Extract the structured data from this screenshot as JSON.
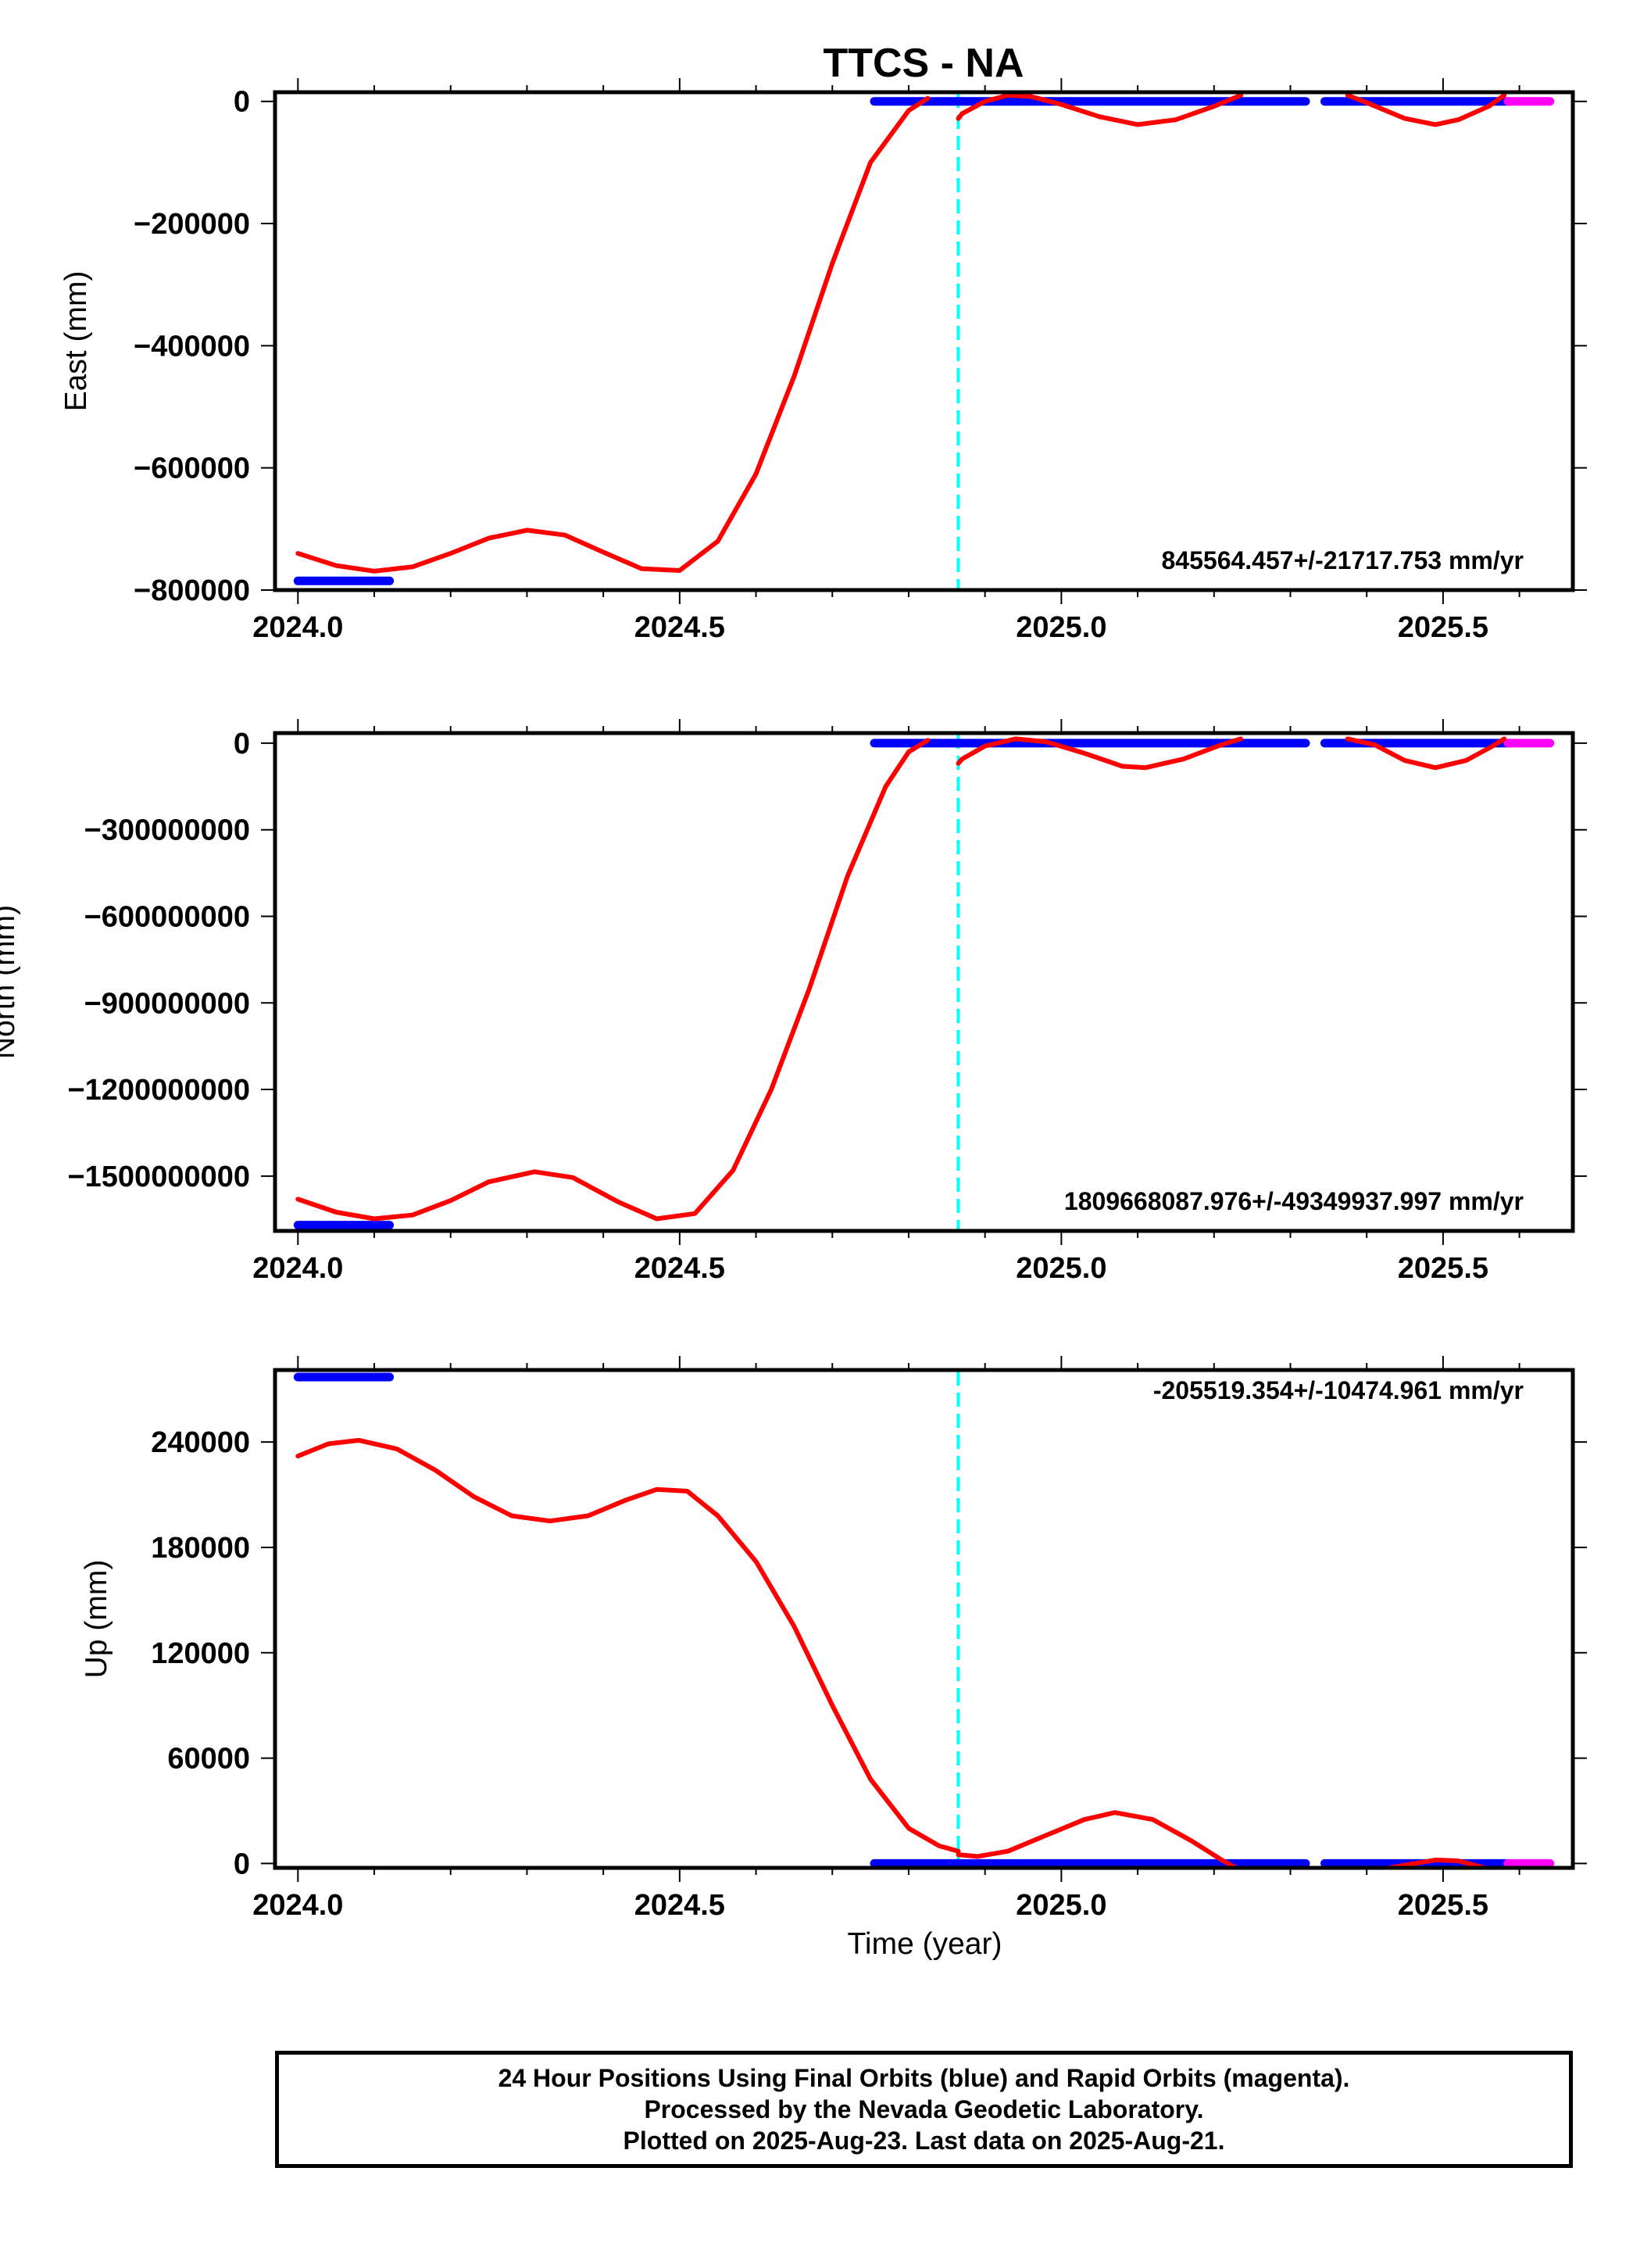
{
  "title": "TTCS - NA",
  "footer": {
    "line1": "24 Hour Positions Using Final Orbits (blue) and Rapid Orbits (magenta).",
    "line2": "Processed by the Nevada Geodetic Laboratory.",
    "line3": "Plotted on 2025-Aug-23. Last data on 2025-Aug-21."
  },
  "colors": {
    "final_orbits": "#0000ff",
    "rapid_orbits": "#ff00ff",
    "model": "#ff0000",
    "event": "#00ffff"
  },
  "chart_data": [
    {
      "type": "line",
      "panel": "east",
      "title": "TTCS - NA",
      "ylabel": "East (mm)",
      "xlabel": "",
      "xlim": [
        2023.97,
        2025.67
      ],
      "ylim": [
        -800000,
        15000
      ],
      "xticks": [
        2024.0,
        2024.5,
        2025.0,
        2025.5
      ],
      "xtick_labels": [
        "2024.0",
        "2024.5",
        "2025.0",
        "2025.5"
      ],
      "yticks": [
        0,
        -200000,
        -400000,
        -600000,
        -800000
      ],
      "ytick_labels": [
        "0",
        "−200000",
        "−400000",
        "−600000",
        "−800000"
      ],
      "rate": "845564.457+/-21717.753 mm/yr",
      "event_line_x": 2024.865,
      "series": [
        {
          "role": "final-orbits",
          "color": "#0000ff",
          "segments": [
            [
              [
                2024.0,
                -785000
              ],
              [
                2024.12,
                -785000
              ]
            ],
            [
              [
                2024.755,
                0
              ],
              [
                2025.32,
                0
              ]
            ],
            [
              [
                2025.345,
                0
              ],
              [
                2025.585,
                0
              ]
            ]
          ]
        },
        {
          "role": "rapid-orbits",
          "color": "#ff00ff",
          "segments": [
            [
              [
                2025.585,
                0
              ],
              [
                2025.64,
                0
              ]
            ]
          ]
        },
        {
          "role": "model",
          "color": "#ff0000",
          "segments": [
            [
              [
                2024.0,
                -740000
              ],
              [
                2024.05,
                -760000
              ],
              [
                2024.1,
                -769000
              ],
              [
                2024.15,
                -762000
              ],
              [
                2024.2,
                -740000
              ],
              [
                2024.25,
                -715000
              ],
              [
                2024.3,
                -702000
              ],
              [
                2024.35,
                -710000
              ],
              [
                2024.4,
                -738000
              ],
              [
                2024.45,
                -765000
              ],
              [
                2024.5,
                -768000
              ],
              [
                2024.55,
                -720000
              ],
              [
                2024.6,
                -610000
              ],
              [
                2024.65,
                -450000
              ],
              [
                2024.7,
                -265000
              ],
              [
                2024.75,
                -100000
              ],
              [
                2024.8,
                -15000
              ],
              [
                2024.825,
                5000
              ]
            ],
            [
              [
                2024.865,
                -28000
              ],
              [
                2024.87,
                -20000
              ],
              [
                2024.9,
                0
              ],
              [
                2024.93,
                10000
              ],
              [
                2024.96,
                8000
              ],
              [
                2025.0,
                -5000
              ],
              [
                2025.05,
                -25000
              ],
              [
                2025.1,
                -38000
              ],
              [
                2025.15,
                -30000
              ],
              [
                2025.2,
                -8000
              ],
              [
                2025.235,
                10000
              ]
            ],
            [
              [
                2025.375,
                10000
              ],
              [
                2025.4,
                -2000
              ],
              [
                2025.45,
                -28000
              ],
              [
                2025.49,
                -38000
              ],
              [
                2025.52,
                -30000
              ],
              [
                2025.56,
                -8000
              ],
              [
                2025.58,
                10000
              ]
            ]
          ]
        }
      ]
    },
    {
      "type": "line",
      "panel": "north",
      "ylabel": "North (mm)",
      "xlabel": "",
      "xlim": [
        2023.97,
        2025.67
      ],
      "ylim": [
        -1690000000,
        35000000
      ],
      "xticks": [
        2024.0,
        2024.5,
        2025.0,
        2025.5
      ],
      "xtick_labels": [
        "2024.0",
        "2024.5",
        "2025.0",
        "2025.5"
      ],
      "yticks": [
        0,
        -300000000,
        -600000000,
        -900000000,
        -1200000000,
        -1500000000
      ],
      "ytick_labels": [
        "0",
        "−300000000",
        "−600000000",
        "−900000000",
        "−1200000000",
        "−1500000000"
      ],
      "rate": "1809668087.976+/-49349937.997 mm/yr",
      "event_line_x": 2024.865,
      "series": [
        {
          "role": "final-orbits",
          "color": "#0000ff",
          "segments": [
            [
              [
                2024.0,
                -1670000000
              ],
              [
                2024.12,
                -1670000000
              ]
            ],
            [
              [
                2024.755,
                0
              ],
              [
                2025.32,
                0
              ]
            ],
            [
              [
                2025.345,
                0
              ],
              [
                2025.585,
                0
              ]
            ]
          ]
        },
        {
          "role": "rapid-orbits",
          "color": "#ff00ff",
          "segments": [
            [
              [
                2025.585,
                0
              ],
              [
                2025.64,
                0
              ]
            ]
          ]
        },
        {
          "role": "model",
          "color": "#ff0000",
          "segments": [
            [
              [
                2024.0,
                -1580000000
              ],
              [
                2024.05,
                -1625000000
              ],
              [
                2024.1,
                -1648000000
              ],
              [
                2024.15,
                -1635000000
              ],
              [
                2024.2,
                -1585000000
              ],
              [
                2024.25,
                -1520000000
              ],
              [
                2024.31,
                -1485000000
              ],
              [
                2024.36,
                -1505000000
              ],
              [
                2024.42,
                -1590000000
              ],
              [
                2024.47,
                -1648000000
              ],
              [
                2024.52,
                -1630000000
              ],
              [
                2024.57,
                -1480000000
              ],
              [
                2024.62,
                -1200000000
              ],
              [
                2024.67,
                -850000000
              ],
              [
                2024.72,
                -460000000
              ],
              [
                2024.77,
                -150000000
              ],
              [
                2024.8,
                -30000000
              ],
              [
                2024.825,
                10000000
              ]
            ],
            [
              [
                2024.865,
                -70000000
              ],
              [
                2024.87,
                -55000000
              ],
              [
                2024.9,
                -10000000
              ],
              [
                2024.94,
                15000000
              ],
              [
                2024.98,
                5000000
              ],
              [
                2025.03,
                -35000000
              ],
              [
                2025.08,
                -80000000
              ],
              [
                2025.11,
                -85000000
              ],
              [
                2025.16,
                -55000000
              ],
              [
                2025.21,
                -5000000
              ],
              [
                2025.235,
                15000000
              ]
            ],
            [
              [
                2025.375,
                15000000
              ],
              [
                2025.41,
                -5000000
              ],
              [
                2025.45,
                -60000000
              ],
              [
                2025.49,
                -85000000
              ],
              [
                2025.53,
                -60000000
              ],
              [
                2025.565,
                -10000000
              ],
              [
                2025.58,
                15000000
              ]
            ]
          ]
        }
      ]
    },
    {
      "type": "line",
      "panel": "up",
      "ylabel": "Up (mm)",
      "xlabel": "Time (year)",
      "xlim": [
        2023.97,
        2025.67
      ],
      "ylim": [
        -2500,
        281000
      ],
      "xticks": [
        2024.0,
        2024.5,
        2025.0,
        2025.5
      ],
      "xtick_labels": [
        "2024.0",
        "2024.5",
        "2025.0",
        "2025.5"
      ],
      "yticks": [
        0,
        60000,
        120000,
        180000,
        240000
      ],
      "ytick_labels": [
        "0",
        "60000",
        "120000",
        "180000",
        "240000"
      ],
      "rate": "-205519.354+/-10474.961 mm/yr",
      "event_line_x": 2024.865,
      "series": [
        {
          "role": "final-orbits",
          "color": "#0000ff",
          "segments": [
            [
              [
                2024.0,
                277000
              ],
              [
                2024.12,
                277000
              ]
            ],
            [
              [
                2024.755,
                0
              ],
              [
                2025.32,
                0
              ]
            ],
            [
              [
                2025.345,
                0
              ],
              [
                2025.585,
                0
              ]
            ]
          ]
        },
        {
          "role": "rapid-orbits",
          "color": "#ff00ff",
          "segments": [
            [
              [
                2025.585,
                0
              ],
              [
                2025.64,
                0
              ]
            ]
          ]
        },
        {
          "role": "model",
          "color": "#ff0000",
          "segments": [
            [
              [
                2024.0,
                232000
              ],
              [
                2024.04,
                239000
              ],
              [
                2024.08,
                241000
              ],
              [
                2024.13,
                236000
              ],
              [
                2024.18,
                224000
              ],
              [
                2024.23,
                209000
              ],
              [
                2024.28,
                198000
              ],
              [
                2024.33,
                195000
              ],
              [
                2024.38,
                198000
              ],
              [
                2024.43,
                207000
              ],
              [
                2024.47,
                213000
              ],
              [
                2024.51,
                212000
              ],
              [
                2024.55,
                198000
              ],
              [
                2024.6,
                172000
              ],
              [
                2024.65,
                135000
              ],
              [
                2024.7,
                90000
              ],
              [
                2024.75,
                48000
              ],
              [
                2024.8,
                20000
              ],
              [
                2024.84,
                10000
              ],
              [
                2024.865,
                7000
              ]
            ],
            [
              [
                2024.865,
                5000
              ],
              [
                2024.89,
                4000
              ],
              [
                2024.93,
                7000
              ],
              [
                2024.98,
                16000
              ],
              [
                2025.03,
                25000
              ],
              [
                2025.07,
                29000
              ],
              [
                2025.12,
                25000
              ],
              [
                2025.17,
                13000
              ],
              [
                2025.21,
                2000
              ],
              [
                2025.235,
                -4000
              ]
            ],
            [
              [
                2025.41,
                -4000
              ],
              [
                2025.45,
                -1000
              ],
              [
                2025.49,
                2000
              ],
              [
                2025.52,
                1500
              ],
              [
                2025.55,
                -2000
              ],
              [
                2025.565,
                -4000
              ]
            ]
          ]
        }
      ]
    }
  ]
}
